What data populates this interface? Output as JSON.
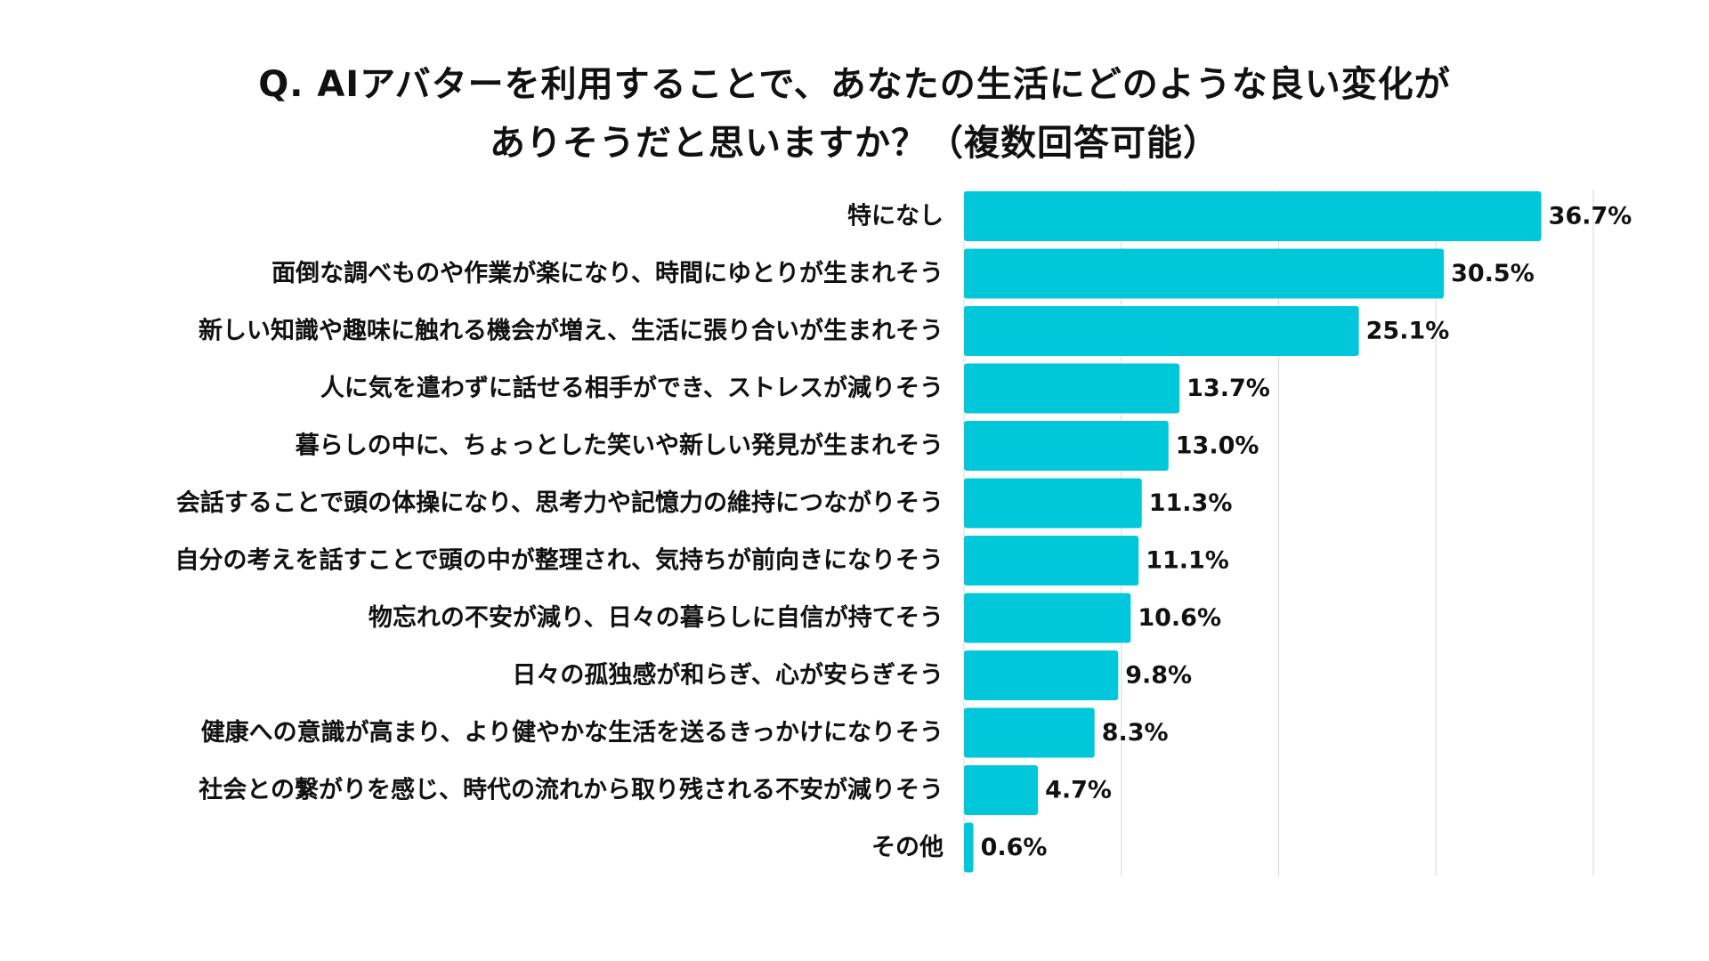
{
  "chart_data": {
    "type": "bar",
    "orientation": "horizontal",
    "title": "Q. AIアバターを利用することで、あなたの生活にどのような良い変化がありそうだと思いますか？（複数回答可能）",
    "title_lines": [
      "Q. AIアバターを利用することで、あなたの生活にどのような良い変化が",
      "ありそうだと思いますか？（複数回答可能）"
    ],
    "categories": [
      "特になし",
      "面倒な調べものや作業が楽になり、時間にゆとりが生まれそう",
      "新しい知識や趣味に触れる機会が増え、生活に張り合いが生まれそう",
      "人に気を遣わずに話せる相手ができ、ストレスが減りそう",
      "暮らしの中に、ちょっとした笑いや新しい発見が生まれそう",
      "会話することで頭の体操になり、思考力や記憶力の維持につながりそう",
      "自分の考えを話すことで頭の中が整理され、気持ちが前向きになりそう",
      "物忘れの不安が減り、日々の暮らしに自信が持てそう",
      "日々の孤独感が和らぎ、心が安らぎそう",
      "健康への意識が高まり、より健やかな生活を送るきっかけになりそう",
      "社会との繋がりを感じ、時代の流れから取り残される不安が減りそう",
      "その他"
    ],
    "values": [
      36.7,
      30.5,
      25.1,
      13.7,
      13.0,
      11.3,
      11.1,
      10.6,
      9.8,
      8.3,
      4.7,
      0.6
    ],
    "value_labels": [
      "36.7%",
      "30.5%",
      "25.1%",
      "13.7%",
      "13.0%",
      "11.3%",
      "11.1%",
      "10.6%",
      "9.8%",
      "8.3%",
      "4.7%",
      "0.6%"
    ],
    "xlim": [
      0,
      40
    ],
    "grid_step": 10,
    "grid": true,
    "xlabel": "",
    "ylabel": "",
    "bar_color": "#00c8da",
    "grid_color": "#d9d9d9"
  }
}
